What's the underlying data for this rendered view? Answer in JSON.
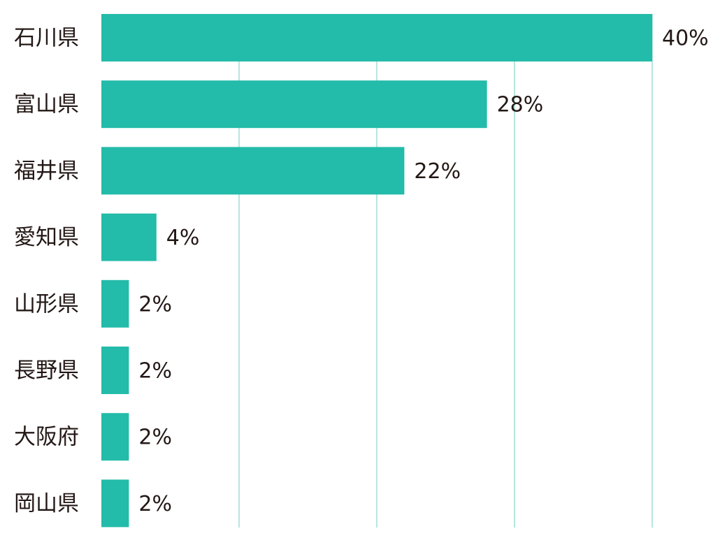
{
  "chart_data": {
    "type": "bar",
    "orientation": "horizontal",
    "categories": [
      "石川県",
      "富山県",
      "福井県",
      "愛知県",
      "山形県",
      "長野県",
      "大阪府",
      "岡山県"
    ],
    "values": [
      40,
      28,
      22,
      4,
      2,
      2,
      2,
      2
    ],
    "value_labels": [
      "40%",
      "28%",
      "22%",
      "4%",
      "2%",
      "2%",
      "2%",
      "2%"
    ],
    "color": "#23bba9",
    "xlim": [
      0,
      40
    ],
    "xticks": [
      10,
      20,
      30,
      40
    ],
    "grid": true
  }
}
